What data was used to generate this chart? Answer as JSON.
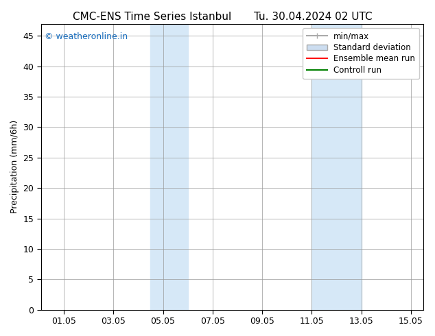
{
  "title_left": "CMC-ENS Time Series Istanbul",
  "title_right": "Tu. 30.04.2024 02 UTC",
  "ylabel": "Precipitation (mm/6h)",
  "watermark": "© weatheronline.in",
  "watermark_color": "#1a6fbf",
  "xlim_start": "2024-04-30 02:00",
  "xlim_end": "2024-05-15 12:00",
  "ylim": [
    0,
    47
  ],
  "yticks": [
    0,
    5,
    10,
    15,
    20,
    25,
    30,
    35,
    40,
    45
  ],
  "xtick_labels": [
    "01.05",
    "03.05",
    "05.05",
    "07.05",
    "09.05",
    "11.05",
    "13.05",
    "15.05"
  ],
  "shaded_regions": [
    {
      "xstart": 4.5,
      "xend": 6.0
    },
    {
      "xstart": 11.0,
      "xend": 13.0
    }
  ],
  "shaded_color": "#d6e8f7",
  "background_color": "#ffffff",
  "legend_labels": [
    "min/max",
    "Standard deviation",
    "Ensemble mean run",
    "Controll run"
  ],
  "legend_colors": [
    "#aaaaaa",
    "#ccddee",
    "#ff0000",
    "#008000"
  ],
  "grid_color": "#999999",
  "tick_color": "#000000",
  "font_size": 9,
  "title_font_size": 11
}
